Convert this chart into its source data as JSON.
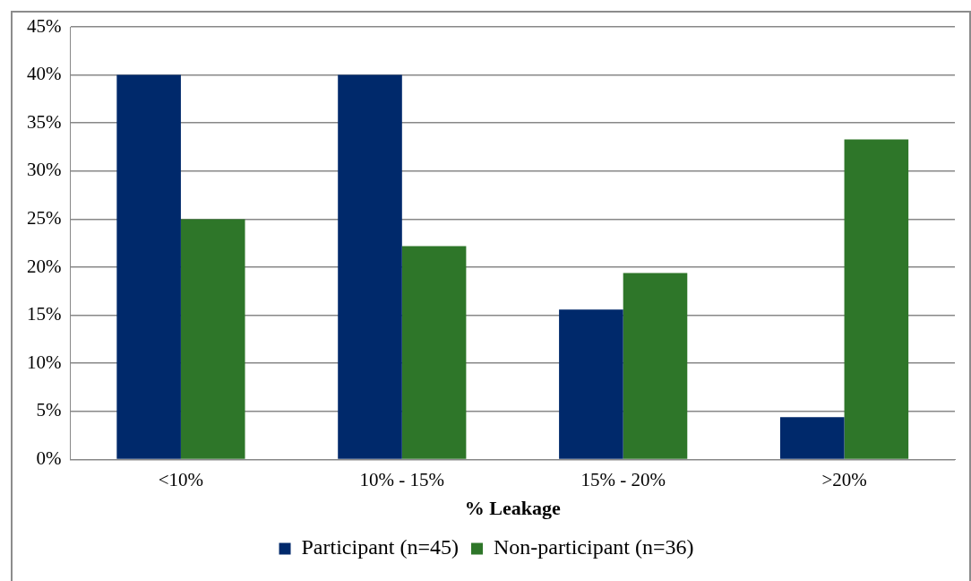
{
  "chart_data": {
    "type": "bar",
    "xlabel": "% Leakage",
    "categories": [
      "<10%",
      "10% - 15%",
      "15% - 20%",
      ">20%"
    ],
    "series": [
      {
        "name": "Participant (n=45)",
        "color": "#00296b",
        "values": [
          40,
          40,
          15.6,
          4.4
        ]
      },
      {
        "name": "Non-participant (n=36)",
        "color": "#2e7629",
        "values": [
          25,
          22.2,
          19.4,
          33.3
        ]
      }
    ],
    "ylim": [
      0,
      45
    ],
    "yticks": [
      {
        "value": 0,
        "label": "0%"
      },
      {
        "value": 5,
        "label": "5%"
      },
      {
        "value": 10,
        "label": "10%"
      },
      {
        "value": 15,
        "label": "15%"
      },
      {
        "value": 20,
        "label": "20%"
      },
      {
        "value": 25,
        "label": "25%"
      },
      {
        "value": 30,
        "label": "30%"
      },
      {
        "value": 35,
        "label": "35%"
      },
      {
        "value": 40,
        "label": "40%"
      },
      {
        "value": 45,
        "label": "45%"
      }
    ],
    "grid": "y",
    "legend": "bottom"
  }
}
